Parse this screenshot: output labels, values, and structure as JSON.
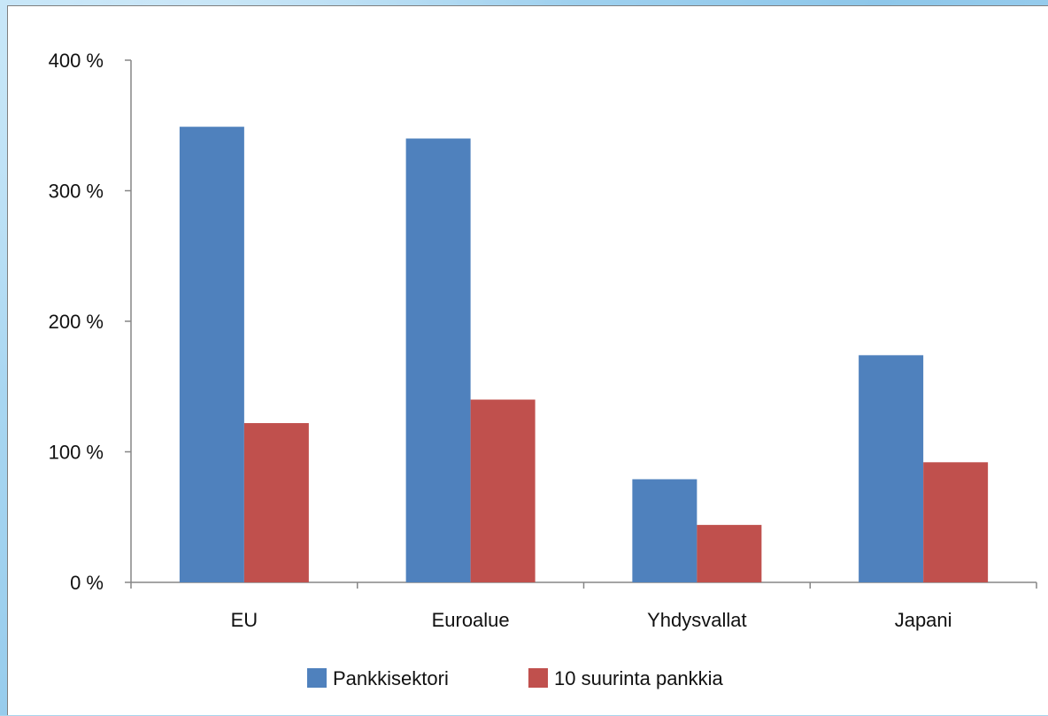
{
  "chart_data": {
    "type": "bar",
    "categories": [
      "EU",
      "Euroalue",
      "Yhdysvallat",
      "Japani"
    ],
    "series": [
      {
        "name": "Pankkisektori",
        "values": [
          349,
          340,
          79,
          174
        ],
        "color": "#4f81bd"
      },
      {
        "name": "10 suurinta pankkia",
        "values": [
          122,
          140,
          44,
          92
        ],
        "color": "#c0504d"
      }
    ],
    "yticks": [
      "0 %",
      "100 %",
      "200 %",
      "300 %",
      "400 %"
    ],
    "ylim": [
      0,
      400
    ],
    "legend_position": "bottom",
    "grid": false,
    "title": "",
    "xlabel": "",
    "ylabel": ""
  }
}
